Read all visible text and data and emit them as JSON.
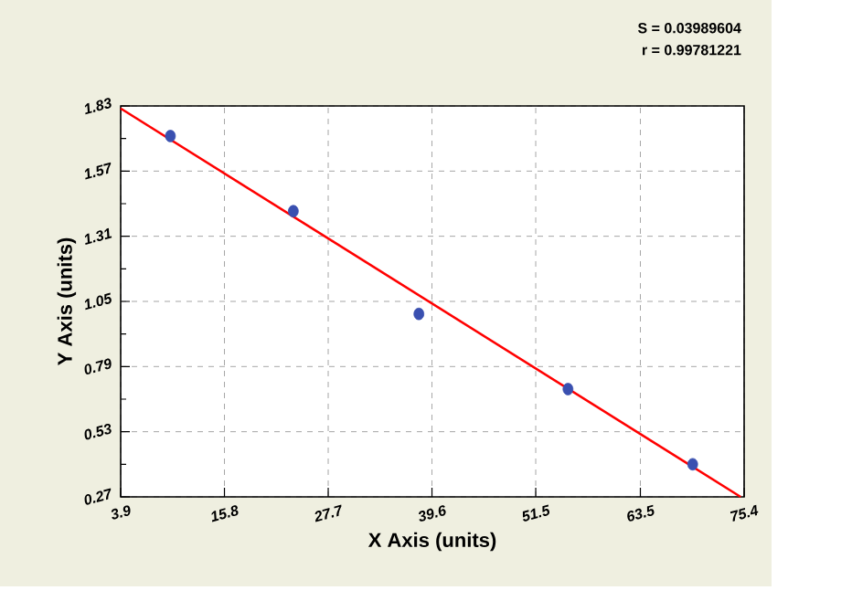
{
  "chart_data": {
    "type": "scatter",
    "xlabel": "X Axis (units)",
    "ylabel": "Y Axis (units)",
    "annotations": [
      "S = 0.03989604",
      "r = 0.99781221"
    ],
    "xlim": [
      3.9,
      75.4
    ],
    "ylim": [
      0.27,
      1.83
    ],
    "xticks": [
      3.9,
      15.8,
      27.7,
      39.6,
      51.5,
      63.5,
      75.4
    ],
    "yticks": [
      0.27,
      0.53,
      0.79,
      1.05,
      1.31,
      1.57,
      1.83
    ],
    "grid": true,
    "series": [
      {
        "color": "#3a50b0",
        "marker": "circle",
        "x": [
          9.6,
          23.7,
          38.1,
          55.2,
          69.5
        ],
        "values": [
          1.71,
          1.41,
          1.0,
          0.7,
          0.4
        ]
      },
      {
        "type": "line",
        "color": "#ff0000",
        "marker": "none",
        "line_style": "solid",
        "x": [
          3.9,
          75.0
        ],
        "values": [
          1.82,
          0.27
        ]
      }
    ]
  }
}
